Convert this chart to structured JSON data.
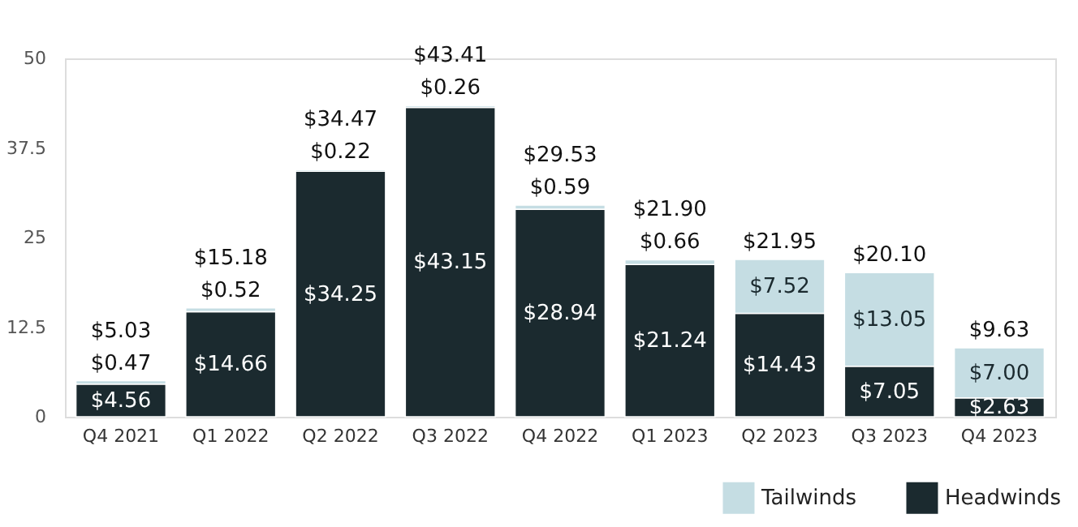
{
  "chart_data": {
    "type": "bar",
    "stacked": true,
    "categories": [
      "Q4 2021",
      "Q1 2022",
      "Q2 2022",
      "Q3 2022",
      "Q4 2022",
      "Q1 2023",
      "Q2 2023",
      "Q3 2023",
      "Q4 2023"
    ],
    "series": [
      {
        "name": "Headwinds",
        "color": "#1b2a2f",
        "values": [
          4.56,
          14.66,
          34.25,
          43.15,
          28.94,
          21.24,
          14.43,
          7.05,
          2.63
        ],
        "value_labels": [
          "$4.56",
          "$14.66",
          "$34.25",
          "$43.15",
          "$28.94",
          "$21.24",
          "$14.43",
          "$7.05",
          "$2.63"
        ]
      },
      {
        "name": "Tailwinds",
        "color": "#c5dde3",
        "values": [
          0.47,
          0.52,
          0.22,
          0.26,
          0.59,
          0.66,
          7.52,
          13.05,
          7.0
        ],
        "value_labels": [
          "$0.47",
          "$0.52",
          "$0.22",
          "$0.26",
          "$0.59",
          "$0.66",
          "$7.52",
          "$13.05",
          "$7.00"
        ]
      }
    ],
    "totals": [
      "$5.03",
      "$15.18",
      "$34.47",
      "$43.41",
      "$29.53",
      "$21.90",
      "$21.95",
      "$20.10",
      "$9.63"
    ],
    "ylim": [
      0,
      50
    ],
    "yticks": [
      0,
      12.5,
      25,
      37.5,
      50
    ],
    "grid": false,
    "legend": "bottom right"
  }
}
